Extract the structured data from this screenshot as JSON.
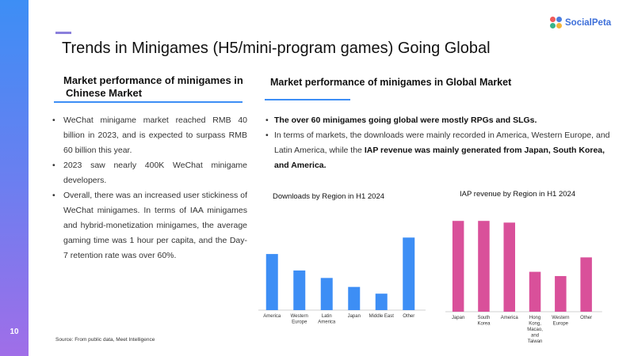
{
  "page_number": "10",
  "brand": {
    "name": "SocialPeta",
    "colors": [
      "#f05a5a",
      "#4a7de0",
      "#38b48a",
      "#f5b53a"
    ]
  },
  "title": "Trends in Minigames (H5/mini-program games) Going Global",
  "left": {
    "heading_line1": "Market performance of minigames in",
    "heading_line2": "Chinese Market",
    "bullets": [
      "WeChat minigame market reached RMB 40 billion in 2023, and is expected to surpass RMB 60 billion this year.",
      "2023 saw nearly 400K WeChat minigame developers.",
      "Overall, there was an increased user stickiness of WeChat minigames. In terms of IAA minigames and hybrid-monetization minigames, the average gaming time was 1 hour per capita, and the Day-7 retention rate was over 60%."
    ]
  },
  "right": {
    "heading": "Market performance of minigames in Global Market",
    "bullet1": "The over 60 minigames going global were mostly RPGs and SLGs.",
    "bullet2_plain": "In terms of markets, the downloads were mainly recorded in America, Western Europe, and Latin America, while the ",
    "bullet2_bold": "IAP revenue was mainly generated from Japan, South Korea, and America."
  },
  "chart_data": [
    {
      "type": "bar",
      "title": "Downloads by Region in H1 2024",
      "categories": [
        "America",
        "Western\nEurope",
        "Latin\nAmerica",
        "Japan",
        "Middle East",
        "Other"
      ],
      "values": [
        75,
        53,
        43,
        31,
        22,
        97
      ],
      "ylim": [
        0,
        100
      ],
      "color": "#3d8ef5"
    },
    {
      "type": "bar",
      "title": "IAP revenue by Region in H1 2024",
      "categories": [
        "Japan",
        "South\nKorea",
        "America",
        "Hong\nKong,\nMacao,\nand\nTaiwan",
        "Western\nEurope",
        "Other"
      ],
      "values": [
        107,
        107,
        105,
        47,
        42,
        64
      ],
      "ylim": [
        0,
        110
      ],
      "color": "#d9509a"
    }
  ],
  "source": "Source: From public data, Meet Intelligence"
}
